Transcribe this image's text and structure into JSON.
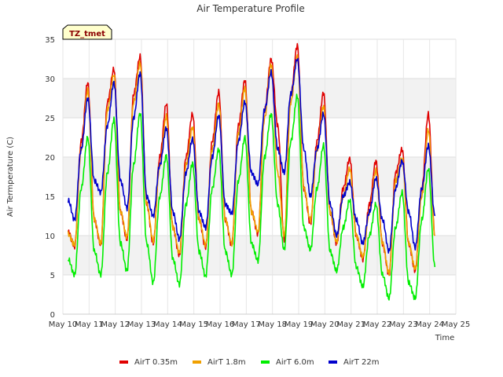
{
  "chart_data": {
    "type": "line",
    "title": "Air Temperature Profile",
    "xlabel": "Time",
    "ylabel": "Air Termperature (C)",
    "badge": "TZ_tmet",
    "ylim": [
      0,
      35
    ],
    "yticks": [
      0,
      5,
      10,
      15,
      20,
      25,
      30,
      35
    ],
    "xlim": [
      0,
      15
    ],
    "xticks": [
      0,
      1,
      2,
      3,
      4,
      5,
      6,
      7,
      8,
      9,
      10,
      11,
      12,
      13,
      14,
      15
    ],
    "xtick_labels": [
      "May 10",
      "May 11",
      "May 12",
      "May 13",
      "May 14",
      "May 15",
      "May 16",
      "May 17",
      "May 18",
      "May 19",
      "May 20",
      "May 21",
      "May 22",
      "May 23",
      "May 24",
      "May 25"
    ],
    "x_note": "x values are days from May 10 00:00",
    "grid": true,
    "legend_position": "bottom",
    "series": [
      {
        "name": "AirT 0.35m",
        "color": "#e00000",
        "x": [
          0.2,
          0.45,
          0.7,
          0.95,
          1.2,
          1.45,
          1.7,
          1.95,
          2.2,
          2.45,
          2.7,
          2.95,
          3.2,
          3.45,
          3.7,
          3.95,
          4.2,
          4.45,
          4.7,
          4.95,
          5.2,
          5.45,
          5.7,
          5.95,
          6.2,
          6.45,
          6.7,
          6.95,
          7.2,
          7.45,
          7.7,
          7.95,
          8.2,
          8.45,
          8.7,
          8.95,
          9.2,
          9.45,
          9.7,
          9.95,
          10.2,
          10.45,
          10.7,
          10.95,
          11.2,
          11.45,
          11.7,
          11.95,
          12.2,
          12.45,
          12.7,
          12.95,
          13.2,
          13.45,
          13.7,
          13.95,
          14.2
        ],
        "y": [
          10.5,
          8.6,
          22,
          29.5,
          12,
          8.8,
          27,
          31.2,
          13,
          9.5,
          28,
          32.8,
          14,
          9,
          20,
          26.8,
          11,
          7.5,
          20,
          25.5,
          12,
          8.5,
          22,
          28.3,
          12,
          8.8,
          24,
          29.8,
          13,
          10.2,
          26,
          32.5,
          24,
          9.5,
          28,
          34.2,
          16,
          11.5,
          22,
          28.2,
          13,
          9,
          16,
          19.8,
          10,
          7,
          14,
          19.5,
          9,
          5,
          18,
          21,
          9,
          5.5,
          16,
          25.5,
          10
        ]
      },
      {
        "name": "AirT 1.8m",
        "color": "#f0a000",
        "x": [
          0.2,
          0.45,
          0.7,
          0.95,
          1.2,
          1.45,
          1.7,
          1.95,
          2.2,
          2.45,
          2.7,
          2.95,
          3.2,
          3.45,
          3.7,
          3.95,
          4.2,
          4.45,
          4.7,
          4.95,
          5.2,
          5.45,
          5.7,
          5.95,
          6.2,
          6.45,
          6.7,
          6.95,
          7.2,
          7.45,
          7.7,
          7.95,
          8.2,
          8.45,
          8.7,
          8.95,
          9.2,
          9.45,
          9.7,
          9.95,
          10.2,
          10.45,
          10.7,
          10.95,
          11.2,
          11.45,
          11.7,
          11.95,
          12.2,
          12.45,
          12.7,
          12.95,
          13.2,
          13.45,
          13.7,
          13.95,
          14.2
        ],
        "y": [
          10.2,
          8.8,
          21,
          28.5,
          12,
          9,
          26,
          30.5,
          13,
          9.8,
          27,
          32,
          14,
          9.3,
          19,
          25.2,
          11,
          7.8,
          19,
          23.8,
          12,
          8.8,
          21,
          26.8,
          12,
          9,
          23,
          28.8,
          13,
          10.5,
          25,
          31.8,
          18,
          10,
          27,
          32.8,
          16,
          12,
          21,
          26.5,
          13,
          9.2,
          15,
          18.5,
          10,
          7.3,
          13,
          18.3,
          9,
          5.2,
          17,
          19.8,
          9,
          5.8,
          15,
          23.5,
          10
        ]
      },
      {
        "name": "AirT 6.0m",
        "color": "#00ee00",
        "x": [
          0.2,
          0.45,
          0.7,
          0.95,
          1.2,
          1.45,
          1.7,
          1.95,
          2.2,
          2.45,
          2.7,
          2.95,
          3.2,
          3.45,
          3.7,
          3.95,
          4.2,
          4.45,
          4.7,
          4.95,
          5.2,
          5.45,
          5.7,
          5.95,
          6.2,
          6.45,
          6.7,
          6.95,
          7.2,
          7.45,
          7.7,
          7.95,
          8.2,
          8.45,
          8.7,
          8.95,
          9.2,
          9.45,
          9.7,
          9.95,
          10.2,
          10.45,
          10.7,
          10.95,
          11.2,
          11.45,
          11.7,
          11.95,
          12.2,
          12.45,
          12.7,
          12.95,
          13.2,
          13.45,
          13.7,
          13.95,
          14.2
        ],
        "y": [
          7,
          5,
          16,
          22.5,
          8,
          5,
          18,
          24.8,
          9,
          5.5,
          19,
          25.6,
          9,
          4,
          15,
          20.2,
          7,
          3.8,
          14,
          19.2,
          8,
          4.8,
          16,
          21,
          8,
          5,
          17,
          22.5,
          9,
          6.8,
          20,
          25.5,
          14,
          8.2,
          22,
          27.8,
          11,
          8.2,
          16,
          21.5,
          8,
          5.5,
          11,
          14.5,
          6,
          3.5,
          10,
          14,
          5,
          2,
          11,
          15.5,
          4,
          2,
          12,
          18.5,
          6
        ]
      },
      {
        "name": "AirT 22m",
        "color": "#0000cc",
        "x": [
          0.2,
          0.45,
          0.7,
          0.95,
          1.2,
          1.45,
          1.7,
          1.95,
          2.2,
          2.45,
          2.7,
          2.95,
          3.2,
          3.45,
          3.7,
          3.95,
          4.2,
          4.45,
          4.7,
          4.95,
          5.2,
          5.45,
          5.7,
          5.95,
          6.2,
          6.45,
          6.7,
          6.95,
          7.2,
          7.45,
          7.7,
          7.95,
          8.2,
          8.45,
          8.7,
          8.95,
          9.2,
          9.45,
          9.7,
          9.95,
          10.2,
          10.45,
          10.7,
          10.95,
          11.2,
          11.45,
          11.7,
          11.95,
          12.2,
          12.45,
          12.7,
          12.95,
          13.2,
          13.45,
          13.7,
          13.95,
          14.2
        ],
        "y": [
          14.5,
          12,
          21,
          27.5,
          17,
          15.5,
          24,
          29.5,
          17,
          13.5,
          25,
          30.7,
          15,
          12.5,
          19,
          23.7,
          13,
          9.5,
          18,
          22.3,
          13,
          11,
          20,
          25.3,
          14,
          12.8,
          22,
          27,
          18,
          16.5,
          26,
          30.8,
          21,
          18,
          28,
          32.5,
          21,
          15,
          21,
          25.5,
          14,
          10,
          15,
          16.8,
          12,
          9,
          13,
          17.3,
          12,
          8,
          16,
          19.5,
          13,
          8.5,
          16,
          21.5,
          12.5
        ]
      }
    ]
  }
}
